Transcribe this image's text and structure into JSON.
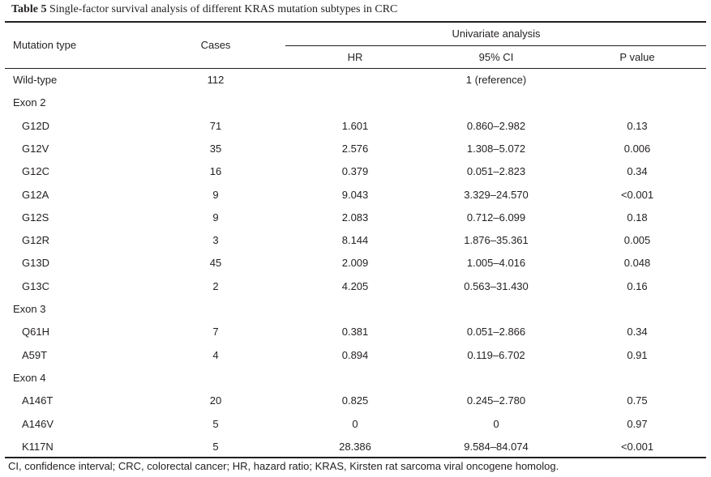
{
  "title": {
    "label": "Table 5",
    "text": "Single-factor survival analysis of different KRAS mutation subtypes in CRC"
  },
  "headers": {
    "mutation_type": "Mutation type",
    "cases": "Cases",
    "univariate": "Univariate analysis",
    "hr": "HR",
    "ci": "95% CI",
    "p": "P value"
  },
  "rows": [
    {
      "type": "Wild-type",
      "cases": "112",
      "hr": "",
      "ci": "1 (reference)",
      "p": "",
      "indent": false
    },
    {
      "type": "Exon 2",
      "cases": "",
      "hr": "",
      "ci": "",
      "p": "",
      "indent": false
    },
    {
      "type": "G12D",
      "cases": "71",
      "hr": "1.601",
      "ci": "0.860–2.982",
      "p": "0.13",
      "indent": true
    },
    {
      "type": "G12V",
      "cases": "35",
      "hr": "2.576",
      "ci": "1.308–5.072",
      "p": "0.006",
      "indent": true
    },
    {
      "type": "G12C",
      "cases": "16",
      "hr": "0.379",
      "ci": "0.051–2.823",
      "p": "0.34",
      "indent": true
    },
    {
      "type": "G12A",
      "cases": "9",
      "hr": "9.043",
      "ci": "3.329–24.570",
      "p": "<0.001",
      "indent": true
    },
    {
      "type": "G12S",
      "cases": "9",
      "hr": "2.083",
      "ci": "0.712–6.099",
      "p": "0.18",
      "indent": true
    },
    {
      "type": "G12R",
      "cases": "3",
      "hr": "8.144",
      "ci": "1.876–35.361",
      "p": "0.005",
      "indent": true
    },
    {
      "type": "G13D",
      "cases": "45",
      "hr": "2.009",
      "ci": "1.005–4.016",
      "p": "0.048",
      "indent": true
    },
    {
      "type": "G13C",
      "cases": "2",
      "hr": "4.205",
      "ci": "0.563–31.430",
      "p": "0.16",
      "indent": true
    },
    {
      "type": "Exon 3",
      "cases": "",
      "hr": "",
      "ci": "",
      "p": "",
      "indent": false
    },
    {
      "type": "Q61H",
      "cases": "7",
      "hr": "0.381",
      "ci": "0.051–2.866",
      "p": "0.34",
      "indent": true
    },
    {
      "type": "A59T",
      "cases": "4",
      "hr": "0.894",
      "ci": "0.119–6.702",
      "p": "0.91",
      "indent": true
    },
    {
      "type": "Exon 4",
      "cases": "",
      "hr": "",
      "ci": "",
      "p": "",
      "indent": false
    },
    {
      "type": "A146T",
      "cases": "20",
      "hr": "0.825",
      "ci": "0.245–2.780",
      "p": "0.75",
      "indent": true
    },
    {
      "type": "A146V",
      "cases": "5",
      "hr": "0",
      "ci": "0",
      "p": "0.97",
      "indent": true
    },
    {
      "type": "K117N",
      "cases": "5",
      "hr": "28.386",
      "ci": "9.584–84.074",
      "p": "<0.001",
      "indent": true
    }
  ],
  "footnote": "CI, confidence interval; CRC, colorectal cancer; HR, hazard ratio; KRAS, Kirsten rat sarcoma viral oncogene homolog."
}
